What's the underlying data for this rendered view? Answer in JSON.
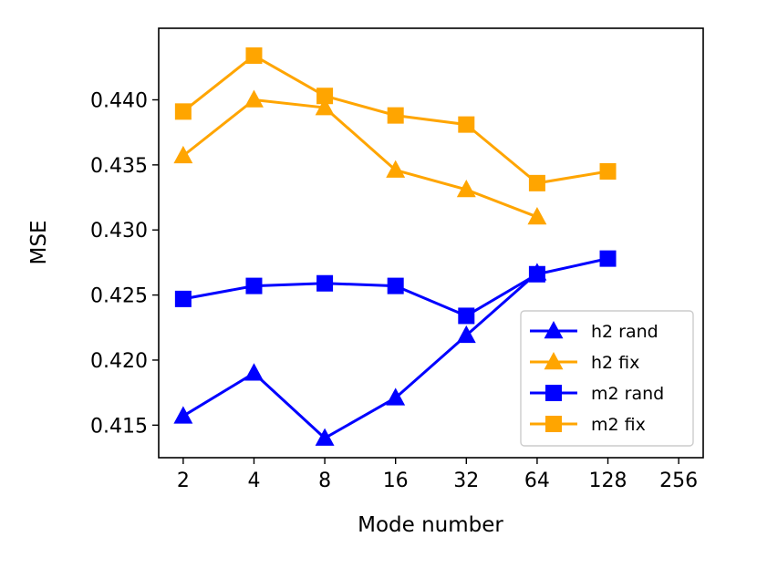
{
  "chart_data": {
    "type": "line",
    "xlabel": "Mode number",
    "ylabel": "MSE",
    "x_scale": "log2",
    "xlim": [
      2,
      256
    ],
    "ylim": [
      0.4125,
      0.4455
    ],
    "xticks": [
      2,
      4,
      8,
      16,
      32,
      64,
      128,
      256
    ],
    "yticks": [
      0.415,
      0.42,
      0.425,
      0.43,
      0.435,
      0.44
    ],
    "ytick_labels": [
      "0.415",
      "0.420",
      "0.425",
      "0.430",
      "0.435",
      "0.440"
    ],
    "grid": false,
    "legend_position": "lower-right",
    "series": [
      {
        "name": "h2 rand",
        "marker": "triangle",
        "color": "#0000ff",
        "x": [
          2,
          4,
          8,
          16,
          32,
          64
        ],
        "y": [
          0.4157,
          0.419,
          0.414,
          0.4171,
          0.4219,
          0.4267
        ]
      },
      {
        "name": "h2 fix",
        "marker": "triangle",
        "color": "#ffa500",
        "x": [
          2,
          4,
          8,
          16,
          32,
          64
        ],
        "y": [
          0.4357,
          0.44,
          0.4394,
          0.4346,
          0.4331,
          0.431
        ]
      },
      {
        "name": "m2 rand",
        "marker": "square",
        "color": "#0000ff",
        "x": [
          2,
          4,
          8,
          16,
          32,
          64,
          128
        ],
        "y": [
          0.4247,
          0.4257,
          0.4259,
          0.4257,
          0.4234,
          0.4266,
          0.4278
        ]
      },
      {
        "name": "m2 fix",
        "marker": "square",
        "color": "#ffa500",
        "x": [
          2,
          4,
          8,
          16,
          32,
          64,
          128
        ],
        "y": [
          0.4391,
          0.4434,
          0.4403,
          0.4388,
          0.4381,
          0.4336,
          0.4345
        ]
      }
    ]
  }
}
